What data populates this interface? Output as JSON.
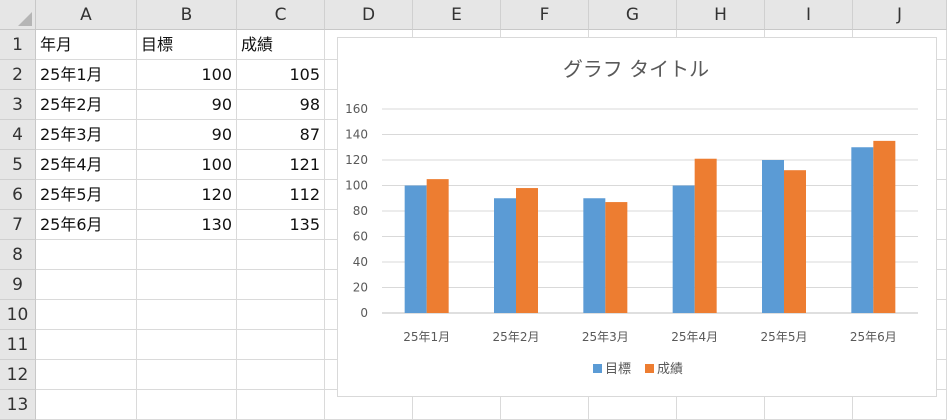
{
  "columns": [
    "A",
    "B",
    "C",
    "D",
    "E",
    "F",
    "G",
    "H",
    "I",
    "J"
  ],
  "rows": [
    "1",
    "2",
    "3",
    "4",
    "5",
    "6",
    "7",
    "8",
    "9",
    "10",
    "11",
    "12",
    "13"
  ],
  "cells": {
    "header": [
      "年月",
      "目標",
      "成績"
    ],
    "data": [
      [
        "25年1月",
        "100",
        "105"
      ],
      [
        "25年2月",
        "90",
        "98"
      ],
      [
        "25年3月",
        "90",
        "87"
      ],
      [
        "25年4月",
        "100",
        "121"
      ],
      [
        "25年5月",
        "120",
        "112"
      ],
      [
        "25年6月",
        "130",
        "135"
      ]
    ]
  },
  "chart_data": {
    "type": "bar",
    "title": "グラフ タイトル",
    "categories": [
      "25年1月",
      "25年2月",
      "25年3月",
      "25年4月",
      "25年5月",
      "25年6月"
    ],
    "series": [
      {
        "name": "目標",
        "values": [
          100,
          90,
          90,
          100,
          120,
          130
        ],
        "color": "#5b9bd5"
      },
      {
        "name": "成績",
        "values": [
          105,
          98,
          87,
          121,
          112,
          135
        ],
        "color": "#ed7d31"
      }
    ],
    "ylim": [
      0,
      160
    ],
    "yticks": [
      0,
      20,
      40,
      60,
      80,
      100,
      120,
      140,
      160
    ],
    "grid": true,
    "legend": "bottom"
  }
}
